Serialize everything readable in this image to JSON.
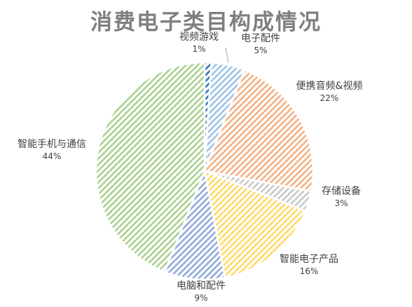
{
  "chart_data": {
    "type": "pie",
    "title": "消费电子类目构成情况",
    "slices": [
      {
        "name": "视频游戏",
        "value": 1,
        "label": "1%",
        "color": "#2e75b6"
      },
      {
        "name": "电子配件",
        "value": 5,
        "label": "5%",
        "color": "#9dc3e6"
      },
      {
        "name": "便携音频&视频",
        "value": 22,
        "label": "22%",
        "color": "#f4b183"
      },
      {
        "name": "存储设备",
        "value": 3,
        "label": "3%",
        "color": "#c9c9c9"
      },
      {
        "name": "智能电子产品",
        "value": 16,
        "label": "16%",
        "color": "#ffd966"
      },
      {
        "name": "电脑和配件",
        "value": 9,
        "label": "9%",
        "color": "#8faadc"
      },
      {
        "name": "智能手机与通信",
        "value": 44,
        "label": "44%",
        "color": "#a9d18e"
      }
    ]
  }
}
